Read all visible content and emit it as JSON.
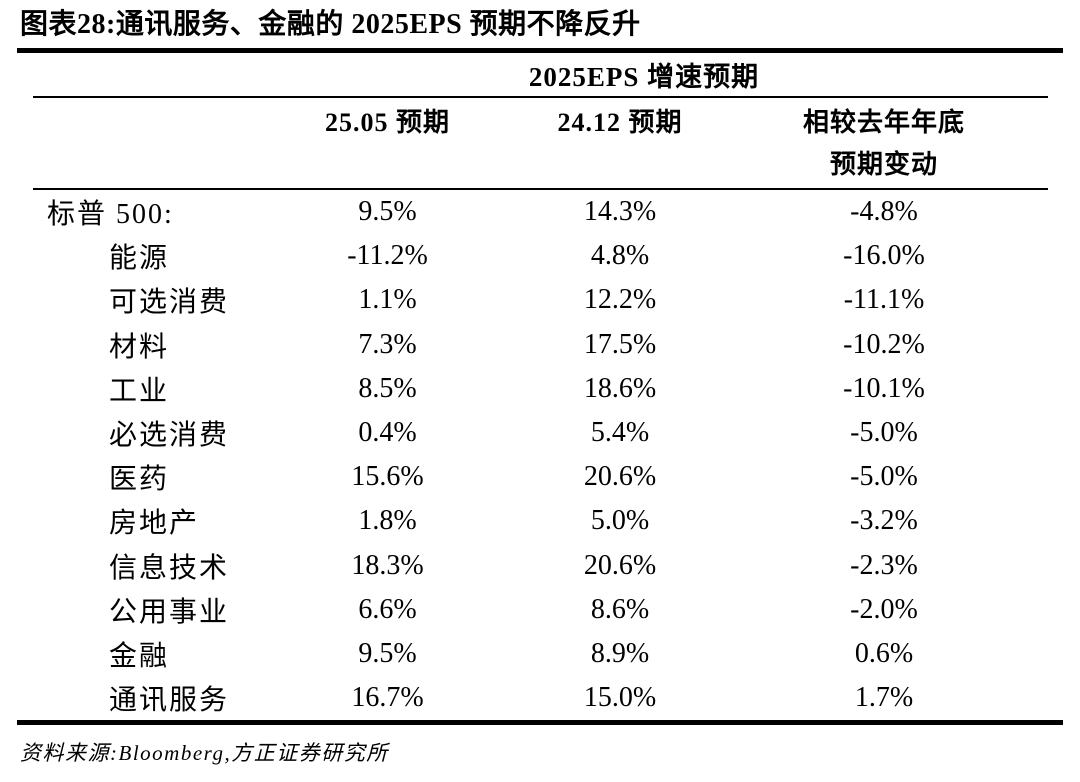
{
  "figure": {
    "title": "图表28:通讯服务、金融的 2025EPS 预期不降反升"
  },
  "table": {
    "group_header": "2025EPS 增速预期",
    "columns": {
      "c1": "25.05 预期",
      "c2": "24.12 预期",
      "c3_line1": "相较去年年底",
      "c3_line2": "预期变动"
    },
    "rows": [
      {
        "label": "标普 500:",
        "indent": false,
        "v1": "9.5%",
        "v2": "14.3%",
        "v3": "-4.8%"
      },
      {
        "label": "能源",
        "indent": true,
        "v1": "-11.2%",
        "v2": "4.8%",
        "v3": "-16.0%"
      },
      {
        "label": "可选消费",
        "indent": true,
        "v1": "1.1%",
        "v2": "12.2%",
        "v3": "-11.1%"
      },
      {
        "label": "材料",
        "indent": true,
        "v1": "7.3%",
        "v2": "17.5%",
        "v3": "-10.2%"
      },
      {
        "label": "工业",
        "indent": true,
        "v1": "8.5%",
        "v2": "18.6%",
        "v3": "-10.1%"
      },
      {
        "label": "必选消费",
        "indent": true,
        "v1": "0.4%",
        "v2": "5.4%",
        "v3": "-5.0%"
      },
      {
        "label": "医药",
        "indent": true,
        "v1": "15.6%",
        "v2": "20.6%",
        "v3": "-5.0%"
      },
      {
        "label": "房地产",
        "indent": true,
        "v1": "1.8%",
        "v2": "5.0%",
        "v3": "-3.2%"
      },
      {
        "label": "信息技术",
        "indent": true,
        "v1": "18.3%",
        "v2": "20.6%",
        "v3": "-2.3%"
      },
      {
        "label": "公用事业",
        "indent": true,
        "v1": "6.6%",
        "v2": "8.6%",
        "v3": "-2.0%"
      },
      {
        "label": "金融",
        "indent": true,
        "v1": "9.5%",
        "v2": "8.9%",
        "v3": "0.6%"
      },
      {
        "label": "通讯服务",
        "indent": true,
        "v1": "16.7%",
        "v2": "15.0%",
        "v3": "1.7%"
      }
    ]
  },
  "footer": {
    "source": "资料来源:Bloomberg,方正证券研究所"
  },
  "colors": {
    "text": "#000000",
    "rule": "#000000",
    "background": "#ffffff"
  },
  "chart_data": {
    "type": "table",
    "title": "2025EPS 增速预期",
    "figure_label": "图表28:通讯服务、金融的 2025EPS 预期不降反升",
    "categories": [
      "标普 500",
      "能源",
      "可选消费",
      "材料",
      "工业",
      "必选消费",
      "医药",
      "房地产",
      "信息技术",
      "公用事业",
      "金融",
      "通讯服务"
    ],
    "series": [
      {
        "name": "25.05 预期",
        "values": [
          9.5,
          -11.2,
          1.1,
          7.3,
          8.5,
          0.4,
          15.6,
          1.8,
          18.3,
          6.6,
          9.5,
          16.7
        ]
      },
      {
        "name": "24.12 预期",
        "values": [
          14.3,
          4.8,
          12.2,
          17.5,
          18.6,
          5.4,
          20.6,
          5.0,
          20.6,
          8.6,
          8.9,
          15.0
        ]
      },
      {
        "name": "相较去年年底预期变动",
        "values": [
          -4.8,
          -16.0,
          -11.1,
          -10.2,
          -10.1,
          -5.0,
          -5.0,
          -3.2,
          -2.3,
          -2.0,
          0.6,
          1.7
        ]
      }
    ],
    "unit": "%",
    "source": "Bloomberg, 方正证券研究所"
  }
}
